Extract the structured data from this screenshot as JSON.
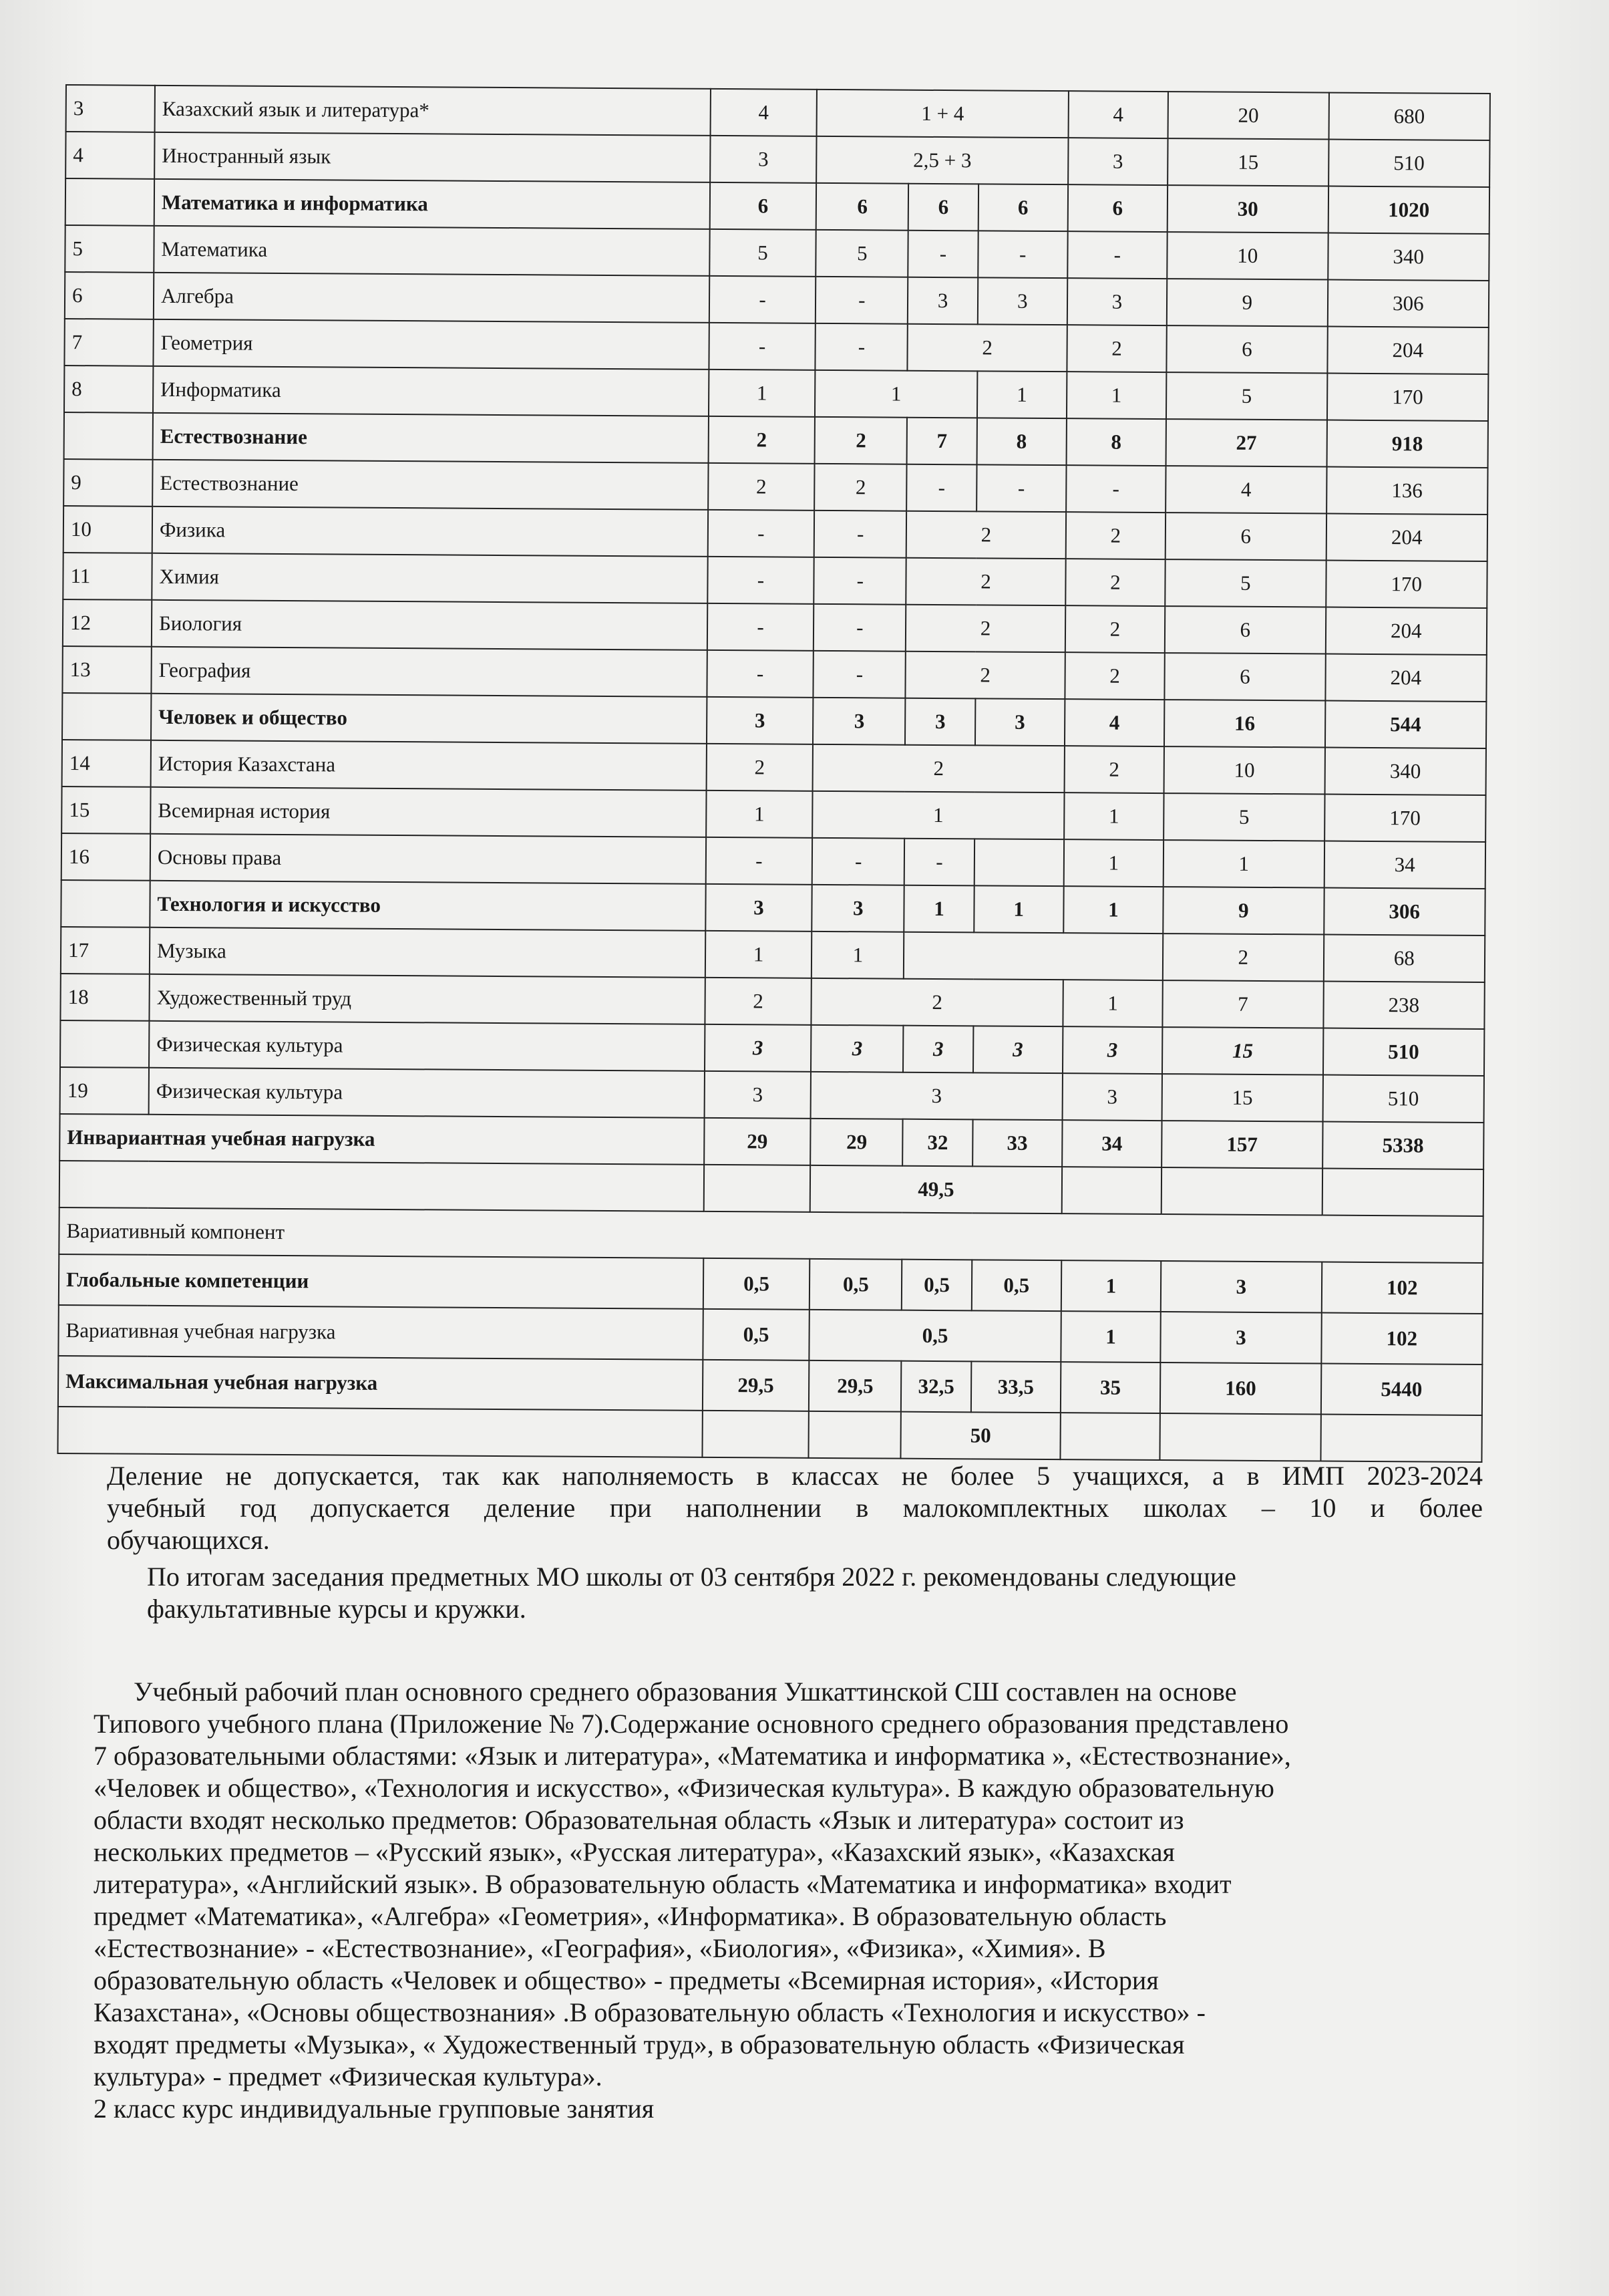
{
  "table": {
    "rows": [
      {
        "num": "3",
        "subject": "Казахский язык и литература*",
        "cells": [
          {
            "v": "4"
          },
          {
            "v": "1 + 4",
            "span": 3
          },
          {
            "v": "4"
          }
        ],
        "week": "20",
        "year": "680"
      },
      {
        "num": "4",
        "subject": "Иностранный язык",
        "cells": [
          {
            "v": "3"
          },
          {
            "v": "2,5   +   3",
            "span": 3
          },
          {
            "v": "3"
          }
        ],
        "week": "15",
        "year": "510"
      },
      {
        "num": "",
        "subject": "Математика и информатика",
        "bold": true,
        "cells": [
          {
            "v": "6"
          },
          {
            "v": "6"
          },
          {
            "v": "6"
          },
          {
            "v": "6"
          },
          {
            "v": "6"
          }
        ],
        "week": "30",
        "year": "1020"
      },
      {
        "num": "5",
        "subject": "Математика",
        "cells": [
          {
            "v": "5"
          },
          {
            "v": "5"
          },
          {
            "v": "-"
          },
          {
            "v": "-"
          },
          {
            "v": "-"
          }
        ],
        "week": "10",
        "year": "340"
      },
      {
        "num": "6",
        "subject": "Алгебра",
        "cells": [
          {
            "v": "-"
          },
          {
            "v": "-"
          },
          {
            "v": "3"
          },
          {
            "v": "3"
          },
          {
            "v": "3"
          }
        ],
        "week": "9",
        "year": "306"
      },
      {
        "num": "7",
        "subject": "Геометрия",
        "cells": [
          {
            "v": "-"
          },
          {
            "v": "-"
          },
          {
            "v": "2",
            "span": 2
          },
          {
            "v": "2"
          }
        ],
        "week": "6",
        "year": "204"
      },
      {
        "num": "8",
        "subject": "Информатика",
        "cells": [
          {
            "v": "1"
          },
          {
            "v": "1",
            "span": 2
          },
          {
            "v": "1"
          },
          {
            "v": "1"
          }
        ],
        "week": "5",
        "year": "170"
      },
      {
        "num": "",
        "subject": "Естествознание",
        "bold": true,
        "cells": [
          {
            "v": "2"
          },
          {
            "v": "2"
          },
          {
            "v": "7"
          },
          {
            "v": "8"
          },
          {
            "v": "8"
          }
        ],
        "week": "27",
        "year": "918"
      },
      {
        "num": "9",
        "subject": "Естествознание",
        "cells": [
          {
            "v": "2"
          },
          {
            "v": "2"
          },
          {
            "v": "-"
          },
          {
            "v": "-"
          },
          {
            "v": "-"
          }
        ],
        "week": "4",
        "year": "136"
      },
      {
        "num": "10",
        "subject": "Физика",
        "cells": [
          {
            "v": "-"
          },
          {
            "v": "-"
          },
          {
            "v": "2",
            "span": 2
          },
          {
            "v": "2"
          }
        ],
        "week": "6",
        "year": "204"
      },
      {
        "num": "11",
        "subject": "Химия",
        "cells": [
          {
            "v": "-"
          },
          {
            "v": "-"
          },
          {
            "v": "2",
            "span": 2
          },
          {
            "v": "2"
          }
        ],
        "week": "5",
        "year": "170"
      },
      {
        "num": "12",
        "subject": "Биология",
        "cells": [
          {
            "v": "-"
          },
          {
            "v": "-"
          },
          {
            "v": "2",
            "span": 2
          },
          {
            "v": "2"
          }
        ],
        "week": "6",
        "year": "204"
      },
      {
        "num": "13",
        "subject": "География",
        "cells": [
          {
            "v": "-"
          },
          {
            "v": "-"
          },
          {
            "v": "2",
            "span": 2
          },
          {
            "v": "2"
          }
        ],
        "week": "6",
        "year": "204"
      },
      {
        "num": "",
        "subject": "Человек и общество",
        "bold": true,
        "cells": [
          {
            "v": "3"
          },
          {
            "v": "3"
          },
          {
            "v": "3"
          },
          {
            "v": "3"
          },
          {
            "v": "4"
          }
        ],
        "week": "16",
        "year": "544"
      },
      {
        "num": "14",
        "subject": "История   Казахстана",
        "cells": [
          {
            "v": "2"
          },
          {
            "v": "2",
            "span": 3
          },
          {
            "v": "2"
          }
        ],
        "week": "10",
        "year": "340"
      },
      {
        "num": "15",
        "subject": "Всемирная   история",
        "cells": [
          {
            "v": "1"
          },
          {
            "v": "1",
            "span": 3
          },
          {
            "v": "1"
          }
        ],
        "week": "5",
        "year": "170"
      },
      {
        "num": "16",
        "subject": "Основы   права",
        "cells": [
          {
            "v": "-"
          },
          {
            "v": "-"
          },
          {
            "v": "-"
          },
          {
            "v": ""
          },
          {
            "v": "1"
          }
        ],
        "week": "1",
        "year": "34"
      },
      {
        "num": "",
        "subject": "Технология и искусство",
        "bold": true,
        "cells": [
          {
            "v": "3"
          },
          {
            "v": "3"
          },
          {
            "v": "1"
          },
          {
            "v": "1"
          },
          {
            "v": "1"
          }
        ],
        "week": "9",
        "year": "306"
      },
      {
        "num": "17",
        "subject": "Музыка",
        "cells": [
          {
            "v": "1"
          },
          {
            "v": "1"
          },
          {
            "v": "",
            "span": 3
          }
        ],
        "week": "2",
        "year": "68"
      },
      {
        "num": "18",
        "subject": "Художественный труд",
        "cells": [
          {
            "v": "2"
          },
          {
            "v": "2",
            "span": 3
          },
          {
            "v": "1"
          }
        ],
        "week": "7",
        "year": "238"
      },
      {
        "num": "",
        "subject": "Физическая культура",
        "italic": true,
        "cells": [
          {
            "v": "3"
          },
          {
            "v": "3"
          },
          {
            "v": "3"
          },
          {
            "v": "3"
          },
          {
            "v": "3"
          }
        ],
        "week": "15",
        "year": "510"
      },
      {
        "num": "19",
        "subject": "Физическая культура",
        "cells": [
          {
            "v": "3"
          },
          {
            "v": "3",
            "span": 3
          },
          {
            "v": "3"
          }
        ],
        "week": "15",
        "year": "510"
      },
      {
        "label": "Инвариантная учебная нагрузка",
        "bold": true,
        "cells": [
          {
            "v": "29"
          },
          {
            "v": "29"
          },
          {
            "v": "32"
          },
          {
            "v": "33"
          },
          {
            "v": "34"
          }
        ],
        "week": "157",
        "year": "5338"
      },
      {
        "label": "",
        "bold": true,
        "cells": [
          {
            "v": ""
          },
          {
            "v": "49,5",
            "span": 3
          },
          {
            "v": ""
          }
        ],
        "week": "",
        "year": ""
      },
      {
        "label": "Вариативный компонент",
        "full": true
      },
      {
        "label": "Глобальные  компетенции",
        "bold": true,
        "tall": true,
        "cells": [
          {
            "v": "0,5"
          },
          {
            "v": "0,5"
          },
          {
            "v": "0,5"
          },
          {
            "v": "0,5"
          },
          {
            "v": "1"
          }
        ],
        "week": "3",
        "year": "102"
      },
      {
        "label": "Вариативная   учебная   нагрузка",
        "boldvals": true,
        "tall": true,
        "cells": [
          {
            "v": "0,5"
          },
          {
            "v": "0,5",
            "span": 3
          },
          {
            "v": "1"
          }
        ],
        "week": "3",
        "year": "102"
      },
      {
        "label": "Максимальная учебная нагрузка",
        "bold": true,
        "tall": true,
        "cells": [
          {
            "v": "29,5"
          },
          {
            "v": "29,5"
          },
          {
            "v": "32,5"
          },
          {
            "v": "33,5"
          },
          {
            "v": "35"
          }
        ],
        "week": "160",
        "year": "5440"
      },
      {
        "label": "",
        "bold": true,
        "cells": [
          {
            "v": ""
          },
          {
            "v": ""
          },
          {
            "v": "50",
            "span": 2
          },
          {
            "v": ""
          }
        ],
        "week": "",
        "year": ""
      }
    ]
  },
  "note": {
    "lines": [
      "Деление не допускается, так как  наполняемость в классах не более 5 учащихся, а  в ИМП 2023-2024",
      "учебный  год  допускается  деление  при  наполнении    в  малокомплектных  школах  –  10  и  более",
      "обучающихся."
    ]
  },
  "recommendation": {
    "lines": [
      "По итогам заседания предметных МО школы от 03 сентября 2022 г. рекомендованы следующие",
      "факультативные курсы и кружки."
    ]
  },
  "plan_description": {
    "lines": [
      "Учебный рабочий план основного среднего образования Ушкаттинской СШ составлен на основе",
      "Типового учебного плана (Приложение № 7).Содержание основного среднего образования представлено",
      "7 образовательными областями: «Язык и литература», «Математика и информатика », «Естествознание»,",
      "«Человек и общество»,  «Технология и искусство», «Физическая культура». В каждую  образовательную",
      "области входят несколько предметов: Образовательная область «Язык и литература» состоит из",
      "нескольких предметов –  «Русский язык», «Русская литература», «Казахский язык», «Казахская",
      "литература», «Английский язык». В образовательную область «Математика и информатика» входит",
      "предмет «Математика», «Алгебра»  «Геометрия», «Информатика».   В образовательную область",
      "«Естествознание» -  «Естествознание», «География», «Биология», «Физика», «Химия». В",
      "образовательную область «Человек и общество» - предметы «Всемирная история», «История",
      "Казахстана»,  «Основы обществознания» .В  образовательную область «Технология и искусство» -",
      "входят предметы  «Музыка», « Художественный  труд», в образовательную  область «Физическая",
      "культура» -  предмет «Физическая  культура».",
      "2 класс курс индивидуальные групповые занятия"
    ]
  }
}
